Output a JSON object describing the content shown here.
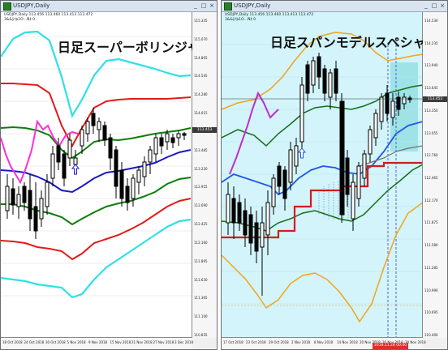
{
  "left_window": {
    "title": "USDJPY,Daily",
    "info_line1": "USDJPY,Daily  113.456 113.460 113.413 113.472",
    "info_line2": "3&&ÿ!ϸ1Ó…Ñ‡ 0",
    "heading": "日足スーパーボリンジャー",
    "last_price": "113.453",
    "price_labels": [
      "115.335",
      "115.070",
      "114.805",
      "114.545",
      "114.280",
      "114.015",
      "113.750",
      "113.485",
      "113.220",
      "112.955",
      "112.690",
      "112.425",
      "112.160",
      "111.895",
      "111.630",
      "111.365",
      "111.100",
      "110.835"
    ],
    "date_labels": [
      "18 Oct 2018",
      "24 Oct 2018",
      "30 Oct 2018",
      "5 Nov 2018",
      "9 Nov 2018",
      "15 Nov 2018",
      "21 Nov 2018",
      "27 Nov 2018",
      "3 Dec 2018"
    ],
    "colors": {
      "background": "#ffffff",
      "upper3": "#2fe0e6",
      "upper2": "#e11b1b",
      "upper1": "#0d7c0d",
      "middle": "#1919c9",
      "lagging": "#ff2fd4",
      "candle_up": "#ffffff",
      "candle_down": "#000000"
    }
  },
  "right_window": {
    "title": "USDJPY,Daily",
    "info_line1": "USDJPY,Daily  113.456 113.460 113.413 113.472",
    "info_line2": "3&&ÿ!ϸ1Ó…Ñ‡ 0",
    "heading": "日足スパンモデルスペシャル",
    "last_price": "113.453",
    "price_labels": [
      "114.530",
      "114.235",
      "113.940",
      "113.645",
      "113.350",
      "113.055",
      "112.760",
      "112.465",
      "112.170",
      "111.875",
      "111.580",
      "111.285",
      "110.990",
      "110.695",
      "110.400"
    ],
    "date_labels": [
      "17 Oct 2018",
      "23 Oct 2018",
      "29 Oct 2018",
      "2 Nov 2018",
      "8 Nov 2018",
      "14 Nov 2018",
      "20 Nov 2018",
      "26 Nov 2018",
      "30 Nov 2018"
    ],
    "period_marker": "2018.11.28 00:00",
    "colors": {
      "background": "#d2f4fa",
      "outer_band": "#f5a31a",
      "span_a": "#1f57e6",
      "span_b": "#d11d1d",
      "lagging": "#c12ad6",
      "green_band": "#176e17",
      "gray_band": "#6f6f6f"
    }
  }
}
